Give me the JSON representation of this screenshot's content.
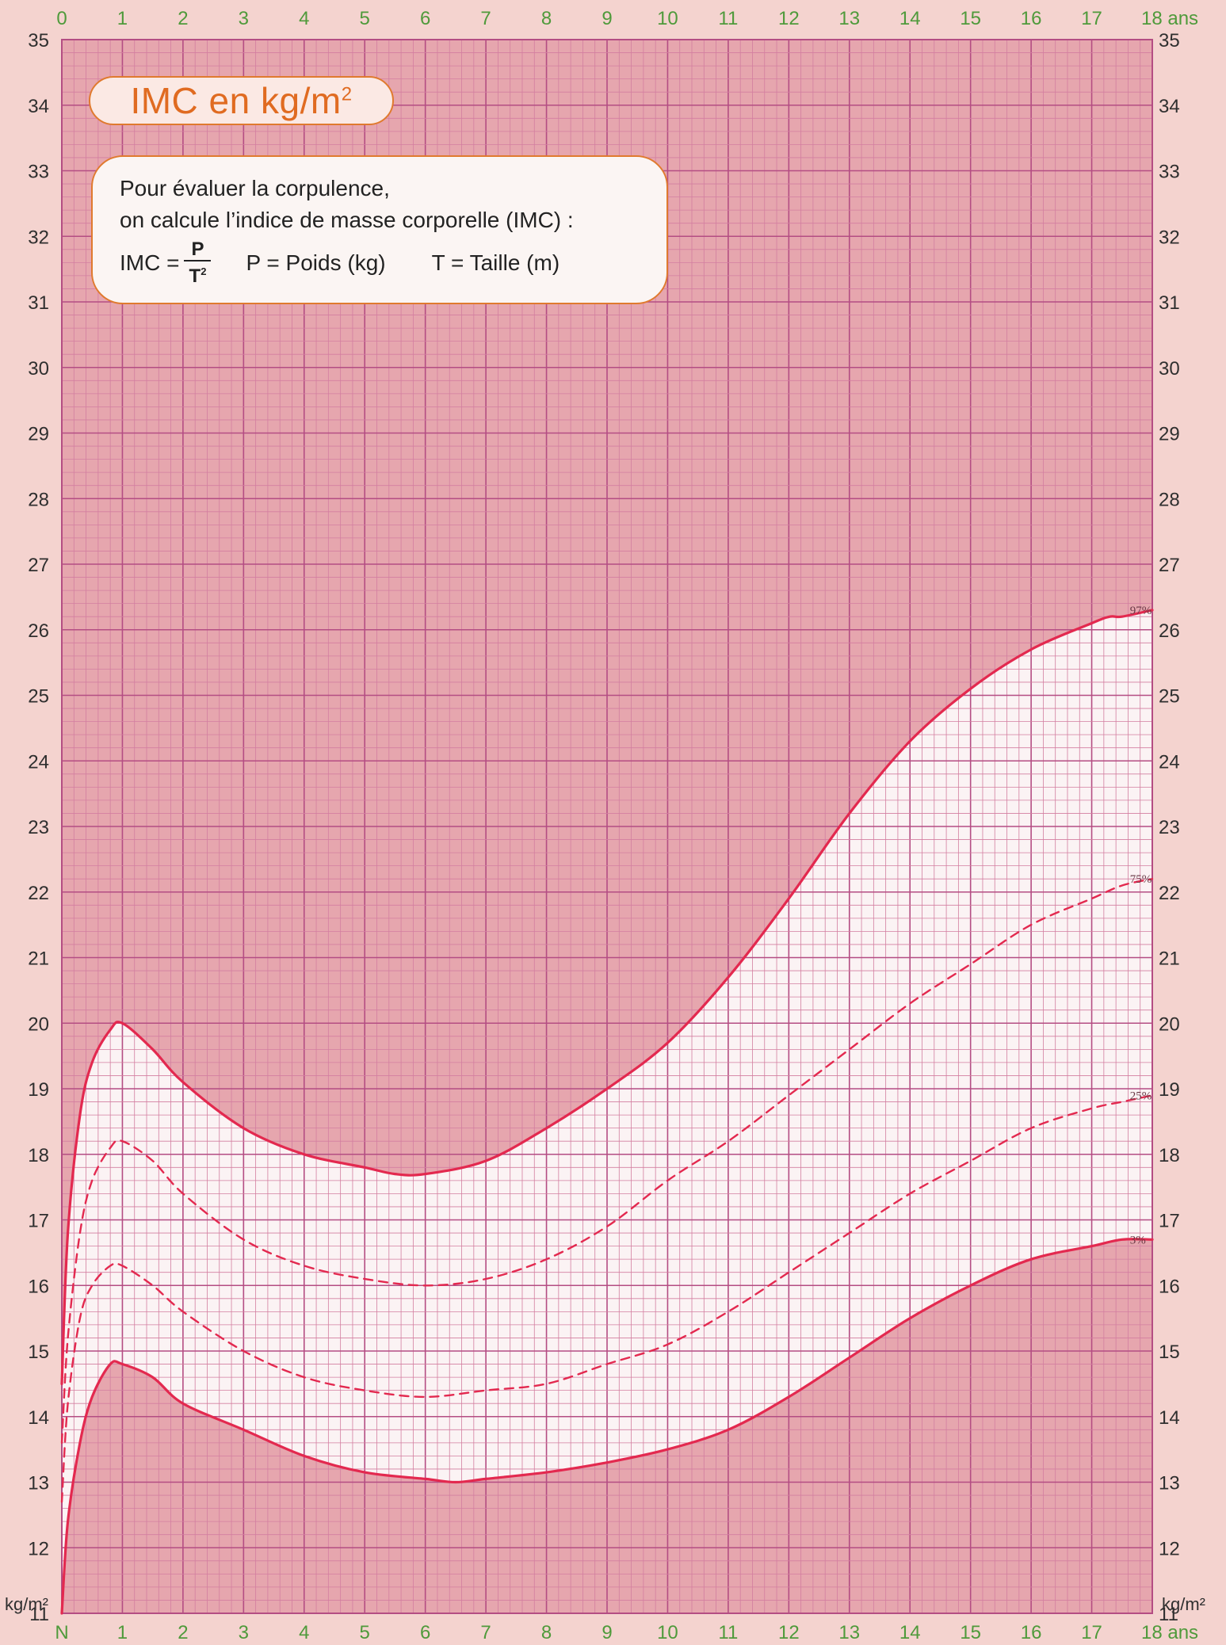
{
  "title": {
    "main": "IMC en kg/m",
    "sup": "2"
  },
  "info": {
    "line1": "Pour évaluer la corpulence,",
    "line2": "on calcule l’indice de masse corporelle (IMC) :",
    "imc_label": "IMC =",
    "numerator": "P",
    "denominator": "T",
    "denominator_sup": "2",
    "poids": "P = Poids (kg)",
    "taille": "T = Taille (m)"
  },
  "colors": {
    "plot_bg": "#e6a6ae",
    "grid_minor": "#d37ea0",
    "grid_major": "#b44d83",
    "band": "#fbf3f4",
    "curve": "#e3294f",
    "x_ticks": "#4f9a3b",
    "y_ticks": "#2f2f2f"
  },
  "chart_data": {
    "type": "line",
    "xlim": [
      0,
      18
    ],
    "ylim": [
      11,
      35
    ],
    "top_ticks": [
      "0",
      "1",
      "2",
      "3",
      "4",
      "5",
      "6",
      "7",
      "8",
      "9",
      "10",
      "11",
      "12",
      "13",
      "14",
      "15",
      "16",
      "17",
      "18 ans"
    ],
    "bottom_ticks": [
      "N",
      "1",
      "2",
      "3",
      "4",
      "5",
      "6",
      "7",
      "8",
      "9",
      "10",
      "11",
      "12",
      "13",
      "14",
      "15",
      "16",
      "17",
      "18 ans"
    ],
    "y_ticks": [
      "11",
      "12",
      "13",
      "14",
      "15",
      "16",
      "17",
      "18",
      "19",
      "20",
      "21",
      "22",
      "23",
      "24",
      "25",
      "26",
      "27",
      "28",
      "29",
      "30",
      "31",
      "32",
      "33",
      "34",
      "35"
    ],
    "y_unit_left": "kg/m²",
    "y_unit_right": "kg/m²",
    "series": [
      {
        "name": "97%",
        "style": "solid",
        "x": [
          0,
          0.1,
          0.3,
          0.5,
          0.8,
          1,
          1.5,
          2,
          3,
          4,
          5,
          5.5,
          6,
          7,
          8,
          9,
          10,
          11,
          12,
          13,
          14,
          15,
          16,
          17,
          17.3,
          17.5,
          18
        ],
        "y": [
          14.5,
          16.8,
          18.6,
          19.4,
          19.9,
          20.0,
          19.6,
          19.1,
          18.4,
          18.0,
          17.8,
          17.7,
          17.7,
          17.9,
          18.4,
          19.0,
          19.7,
          20.7,
          21.9,
          23.2,
          24.3,
          25.1,
          25.7,
          26.1,
          26.2,
          26.2,
          26.3
        ]
      },
      {
        "name": "75%",
        "style": "dashed",
        "x": [
          0,
          0.1,
          0.3,
          0.5,
          0.8,
          1,
          1.5,
          2,
          3,
          4,
          5,
          6,
          7,
          8,
          9,
          10,
          11,
          12,
          13,
          14,
          15,
          16,
          17,
          17.5,
          18
        ],
        "y": [
          13.6,
          15.2,
          16.8,
          17.6,
          18.1,
          18.2,
          17.9,
          17.4,
          16.7,
          16.3,
          16.1,
          16.0,
          16.1,
          16.4,
          16.9,
          17.6,
          18.2,
          18.9,
          19.6,
          20.3,
          20.9,
          21.5,
          21.9,
          22.1,
          22.2
        ]
      },
      {
        "name": "25%",
        "style": "dashed",
        "x": [
          0,
          0.1,
          0.3,
          0.5,
          0.8,
          1,
          1.5,
          2,
          3,
          4,
          5,
          6,
          7,
          8,
          9,
          10,
          11,
          12,
          13,
          14,
          15,
          16,
          17,
          17.5,
          18
        ],
        "y": [
          12.7,
          14.2,
          15.5,
          16.0,
          16.3,
          16.3,
          16.0,
          15.6,
          15.0,
          14.6,
          14.4,
          14.3,
          14.4,
          14.5,
          14.8,
          15.1,
          15.6,
          16.2,
          16.8,
          17.4,
          17.9,
          18.4,
          18.7,
          18.8,
          18.9
        ]
      },
      {
        "name": "3%",
        "style": "solid",
        "x": [
          0,
          0.1,
          0.3,
          0.5,
          0.8,
          1,
          1.5,
          2,
          3,
          4,
          5,
          6,
          6.5,
          7,
          8,
          9,
          10,
          11,
          12,
          13,
          14,
          15,
          16,
          17,
          17.5,
          18
        ],
        "y": [
          11.0,
          12.4,
          13.6,
          14.3,
          14.8,
          14.8,
          14.6,
          14.2,
          13.8,
          13.4,
          13.15,
          13.05,
          13.0,
          13.05,
          13.15,
          13.3,
          13.5,
          13.8,
          14.3,
          14.9,
          15.5,
          16.0,
          16.4,
          16.6,
          16.7,
          16.7
        ]
      }
    ]
  }
}
